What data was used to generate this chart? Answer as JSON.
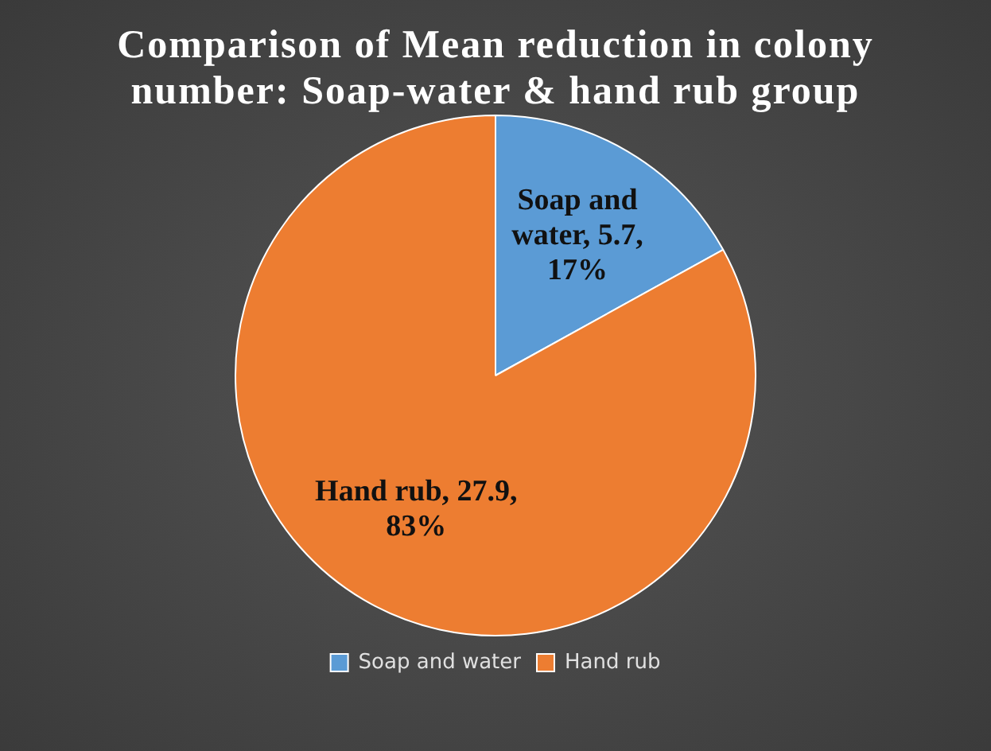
{
  "chart_data": {
    "type": "pie",
    "title": "Comparison of Mean reduction in colony number: Soap-water &  hand rub group",
    "categories": [
      "Soap and water",
      "Hand rub"
    ],
    "values": [
      5.7,
      27.9
    ],
    "colors": [
      "#5b9bd5",
      "#ed7d31"
    ],
    "value_labels": [
      "Soap and water, 5.7, 17%",
      "Hand rub, 27.9, 83%"
    ],
    "legend": "bottom"
  }
}
